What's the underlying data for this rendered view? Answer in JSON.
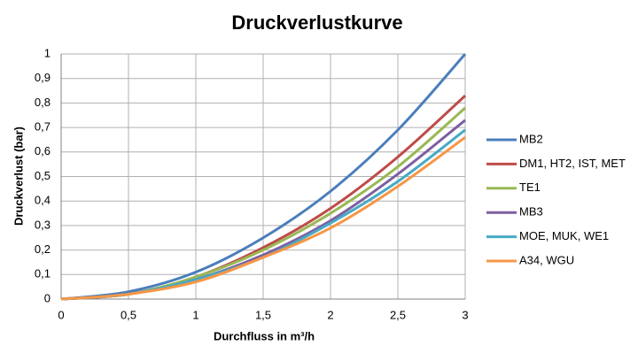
{
  "chart_data": {
    "type": "line",
    "title": "Druckverlustkurve",
    "x_label": "Durchfluss in m³/h",
    "y_label": "Druckverlust (bar)",
    "x": [
      0,
      0.5,
      1,
      1.5,
      2,
      2.5,
      3
    ],
    "series": [
      {
        "name": "MB2",
        "color": "#4a7ebb",
        "values": [
          0,
          0.03,
          0.11,
          0.25,
          0.44,
          0.69,
          1.0
        ]
      },
      {
        "name": "DM1, HT2, IST, MET",
        "color": "#be4b48",
        "values": [
          0,
          0.02,
          0.09,
          0.21,
          0.37,
          0.58,
          0.83
        ]
      },
      {
        "name": "TE1",
        "color": "#98b954",
        "values": [
          0,
          0.02,
          0.09,
          0.2,
          0.35,
          0.54,
          0.78
        ]
      },
      {
        "name": "MB3",
        "color": "#7d60a0",
        "values": [
          0,
          0.02,
          0.08,
          0.18,
          0.32,
          0.51,
          0.73
        ]
      },
      {
        "name": "MOE, MUK, WE1",
        "color": "#46aac5",
        "values": [
          0,
          0.02,
          0.08,
          0.17,
          0.31,
          0.48,
          0.69
        ]
      },
      {
        "name": "A34, WGU",
        "color": "#f79646",
        "values": [
          0,
          0.02,
          0.07,
          0.17,
          0.29,
          0.46,
          0.66
        ]
      }
    ],
    "xlim": [
      0,
      3
    ],
    "xticks": [
      0,
      {
        "value": 0.5,
        "label": "0,5"
      },
      1,
      {
        "value": 1.5,
        "label": "1,5"
      },
      2,
      {
        "value": 2.5,
        "label": "2,5"
      },
      3
    ],
    "ylim": [
      0,
      1
    ],
    "yticks": [
      0,
      {
        "value": 0.1,
        "label": "0,1"
      },
      {
        "value": 0.2,
        "label": "0,2"
      },
      {
        "value": 0.3,
        "label": "0,3"
      },
      {
        "value": 0.4,
        "label": "0,4"
      },
      {
        "value": 0.5,
        "label": "0,5"
      },
      {
        "value": 0.6,
        "label": "0,6"
      },
      {
        "value": 0.7,
        "label": "0,7"
      },
      {
        "value": 0.8,
        "label": "0,8"
      },
      {
        "value": 0.9,
        "label": "0,9"
      },
      1
    ],
    "grid": true,
    "legend": "right"
  }
}
